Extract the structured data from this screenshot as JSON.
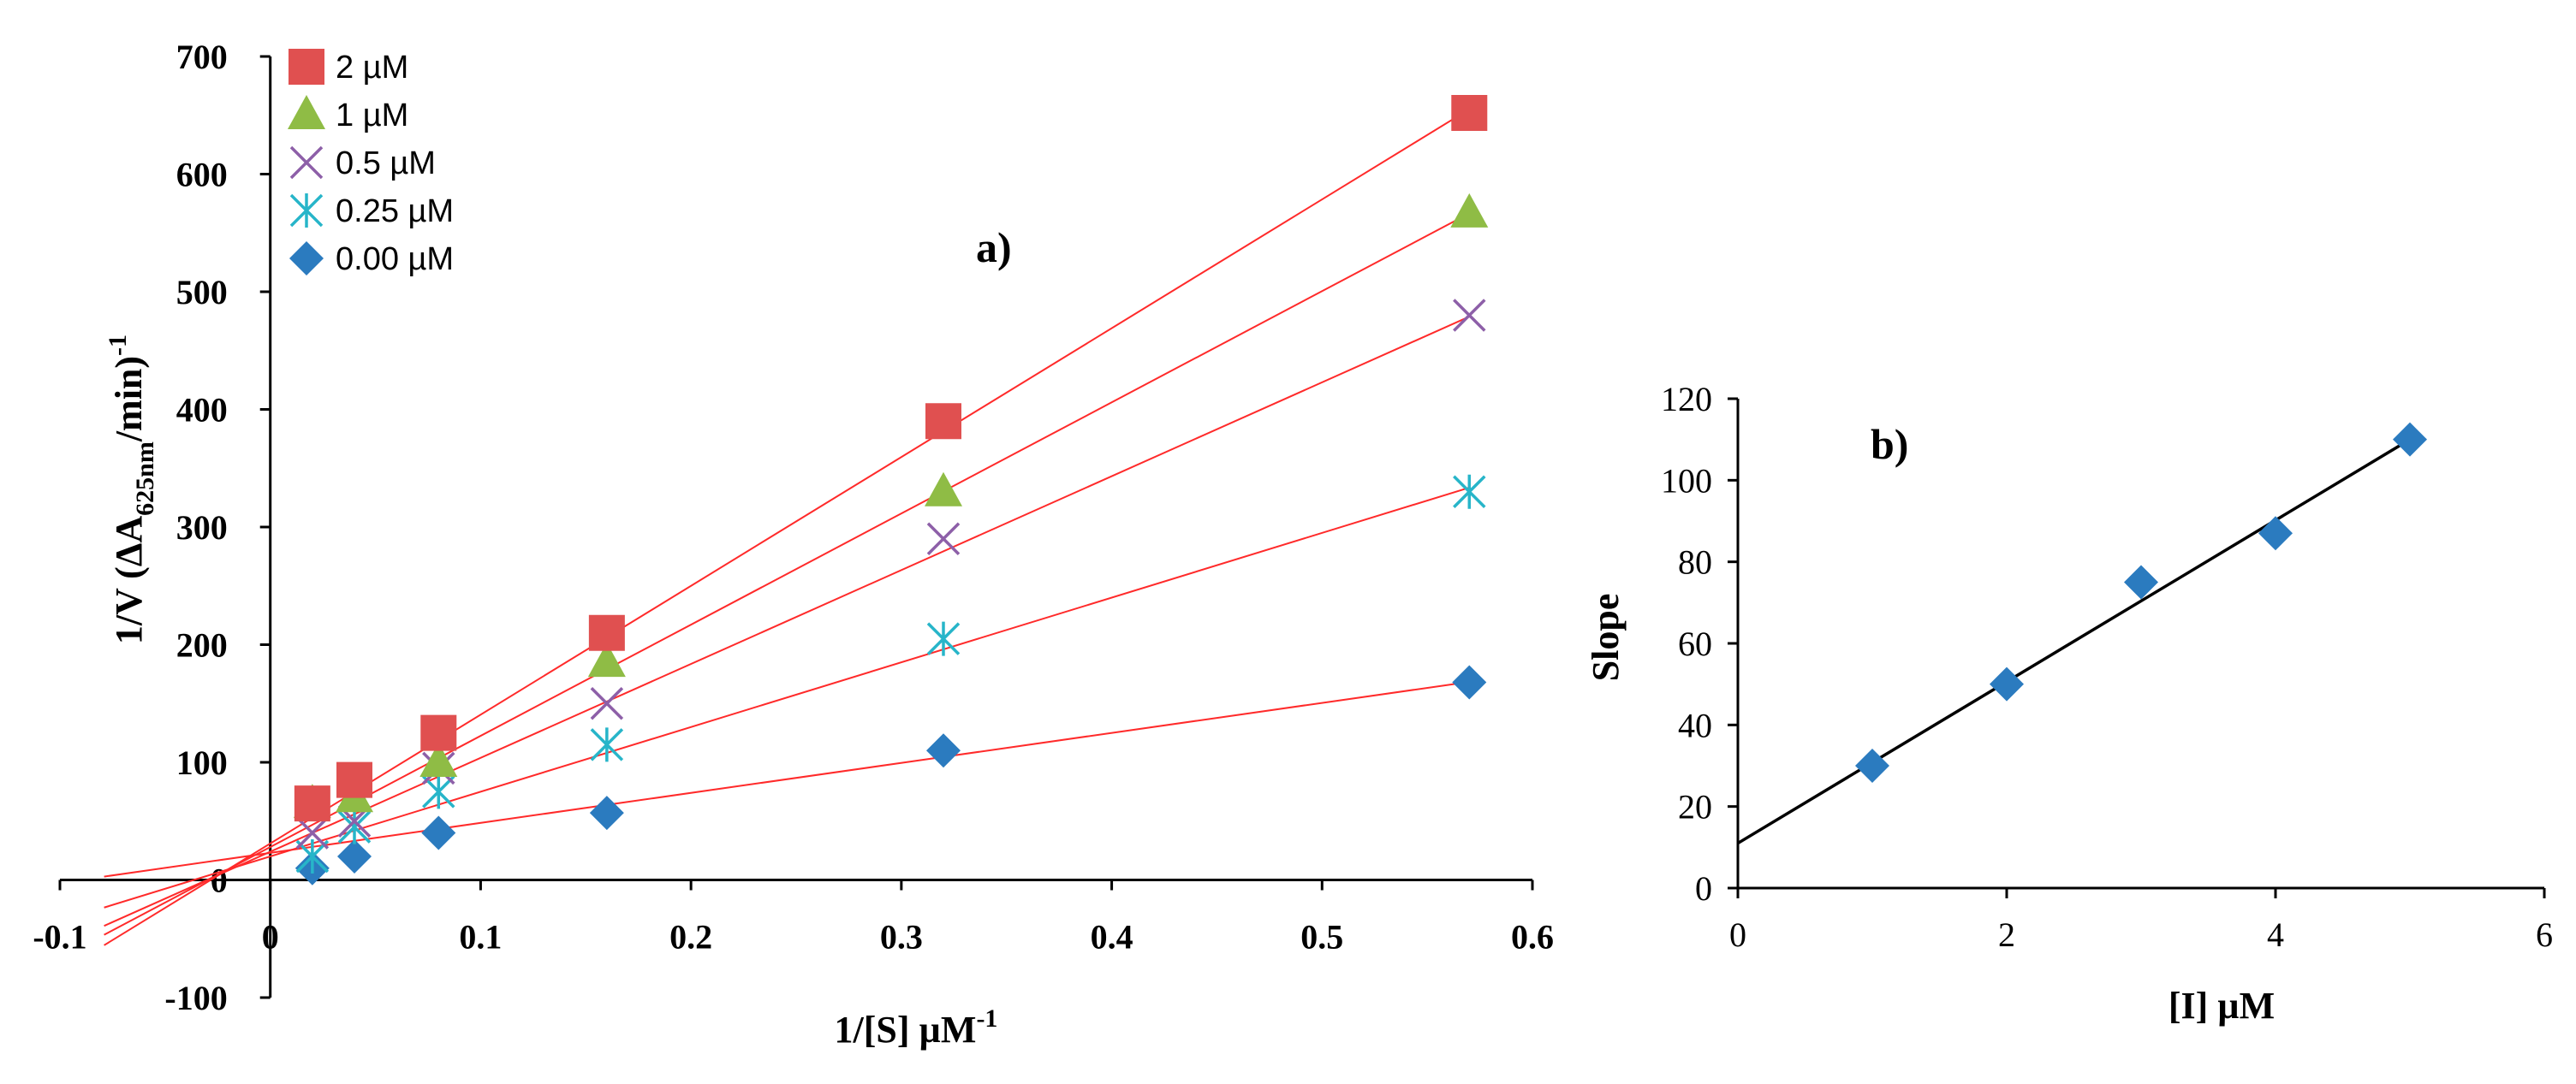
{
  "chart_data": [
    {
      "type": "scatter",
      "panel_label": "a)",
      "title": "",
      "xlabel": "1/[S] µM",
      "xlabel_sup": "-1",
      "ylabel_main": "1/V (ΔA",
      "ylabel_sub": "625nm",
      "ylabel_tail": "/min)",
      "ylabel_sup": "-1",
      "xlim": [
        -0.1,
        0.6
      ],
      "ylim": [
        -100,
        700
      ],
      "xticks": [
        "-0.1",
        "0",
        "0.1",
        "0.2",
        "0.3",
        "0.4",
        "0.5",
        "0.6"
      ],
      "yticks": [
        "-100",
        "0",
        "100",
        "200",
        "300",
        "400",
        "500",
        "600",
        "700"
      ],
      "legend_position": "top-left",
      "x": [
        0.02,
        0.04,
        0.08,
        0.16,
        0.32,
        0.57
      ],
      "series": [
        {
          "name": "2 µM",
          "marker": "square",
          "color": "#e05050",
          "values": [
            65,
            85,
            125,
            210,
            390,
            652
          ],
          "fit": {
            "slope": 1095,
            "intercept": 31
          }
        },
        {
          "name": "1 µM",
          "marker": "triangle",
          "color": "#8fbc45",
          "values": [
            65,
            70,
            100,
            185,
            330,
            567
          ],
          "fit": {
            "slope": 945,
            "intercept": 28
          }
        },
        {
          "name": "0.5 µM",
          "marker": "x",
          "color": "#8d5fa8",
          "values": [
            40,
            50,
            95,
            150,
            290,
            480
          ],
          "fit": {
            "slope": 798,
            "intercept": 24
          }
        },
        {
          "name": "0.25 µM",
          "marker": "asterisk",
          "color": "#27b5c9",
          "values": [
            20,
            45,
            75,
            115,
            205,
            330
          ],
          "fit": {
            "slope": 550,
            "intercept": 20
          }
        },
        {
          "name": "0.00 µM",
          "marker": "diamond",
          "color": "#2b7bbf",
          "values": [
            10,
            20,
            40,
            57,
            110,
            168
          ],
          "fit": {
            "slope": 255,
            "intercept": 23
          }
        }
      ],
      "fit_color": "#ff2a2a",
      "fit_x_range": [
        -0.079,
        0.57
      ]
    },
    {
      "type": "scatter",
      "panel_label": "b)",
      "title": "",
      "xlabel": "[I] µM",
      "ylabel": "Slope",
      "xlim": [
        0,
        6
      ],
      "ylim": [
        0,
        120
      ],
      "xticks": [
        "0",
        "2",
        "4",
        "6"
      ],
      "yticks": [
        "0",
        "20",
        "40",
        "60",
        "80",
        "100",
        "120"
      ],
      "x": [
        1,
        2,
        3,
        4,
        5
      ],
      "series": [
        {
          "name": "Slope",
          "marker": "diamond",
          "color": "#2b7bbf",
          "values": [
            30,
            50,
            75,
            87,
            110
          ],
          "fit": {
            "slope": 19.8,
            "intercept": 11
          }
        }
      ],
      "fit_color": "#000000",
      "fit_x_range": [
        0,
        5
      ]
    }
  ]
}
